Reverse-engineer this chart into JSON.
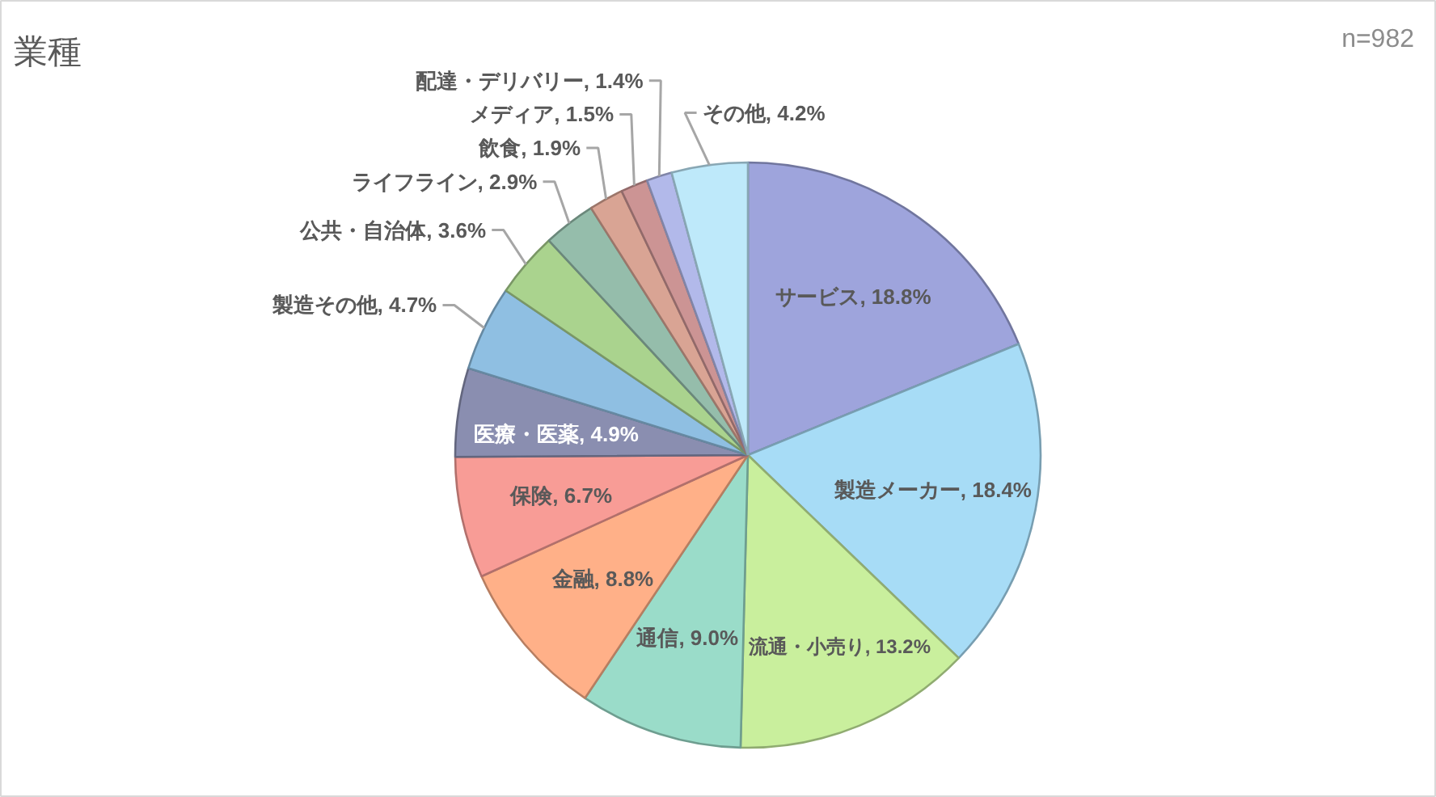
{
  "chart_data": {
    "type": "pie",
    "title": "業種",
    "annotations": [
      "n=982"
    ],
    "categories": [
      "サービス",
      "製造メーカー",
      "流通・小売り",
      "通信",
      "金融",
      "保険",
      "医療・医薬",
      "製造その他",
      "公共・自治体",
      "ライフライン",
      "飲食",
      "メディア",
      "配達・デリバリー",
      "その他"
    ],
    "values": [
      18.8,
      18.4,
      13.2,
      9.0,
      8.8,
      6.7,
      4.9,
      4.7,
      3.6,
      2.9,
      1.9,
      1.5,
      1.4,
      4.2
    ],
    "value_labels": [
      "18.8%",
      "18.4%",
      "13.2%",
      "9.0%",
      "8.8%",
      "6.7%",
      "4.9%",
      "4.7%",
      "3.6%",
      "2.9%",
      "1.9%",
      "1.5%",
      "1.4%",
      "4.2%"
    ],
    "colors": [
      "#9ea4dc",
      "#a7dcf6",
      "#c9ef9d",
      "#9adcc9",
      "#ffb088",
      "#f89c96",
      "#8a8eb0",
      "#8fbfe2",
      "#aad38e",
      "#95bdab",
      "#d9a494",
      "#cc9494",
      "#b2b9ea",
      "#bee9fa"
    ]
  }
}
